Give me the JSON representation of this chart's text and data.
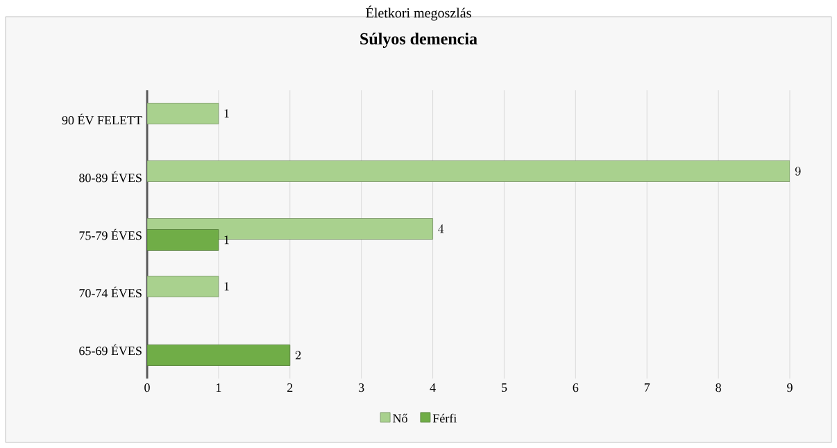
{
  "chart_data": {
    "type": "bar",
    "orientation": "horizontal",
    "title": "Életkori megoszlás",
    "subtitle": "Súlyos demencia",
    "categories": [
      "90 ÉV FELETT",
      "80-89 ÉVES",
      "75-79 ÉVES",
      "70-74 ÉVES",
      "65-69 ÉVES"
    ],
    "series": [
      {
        "name": "Nő",
        "color": "#a9d18e",
        "values": [
          1,
          9,
          4,
          1,
          null
        ]
      },
      {
        "name": "Férfi",
        "color": "#70ad47",
        "values": [
          null,
          null,
          1,
          null,
          2
        ]
      }
    ],
    "xlim": [
      0,
      9
    ],
    "xticks": [
      0,
      1,
      2,
      3,
      4,
      5,
      6,
      7,
      8,
      9
    ],
    "grid": "x",
    "legend": "bottom",
    "data_labels": true
  }
}
